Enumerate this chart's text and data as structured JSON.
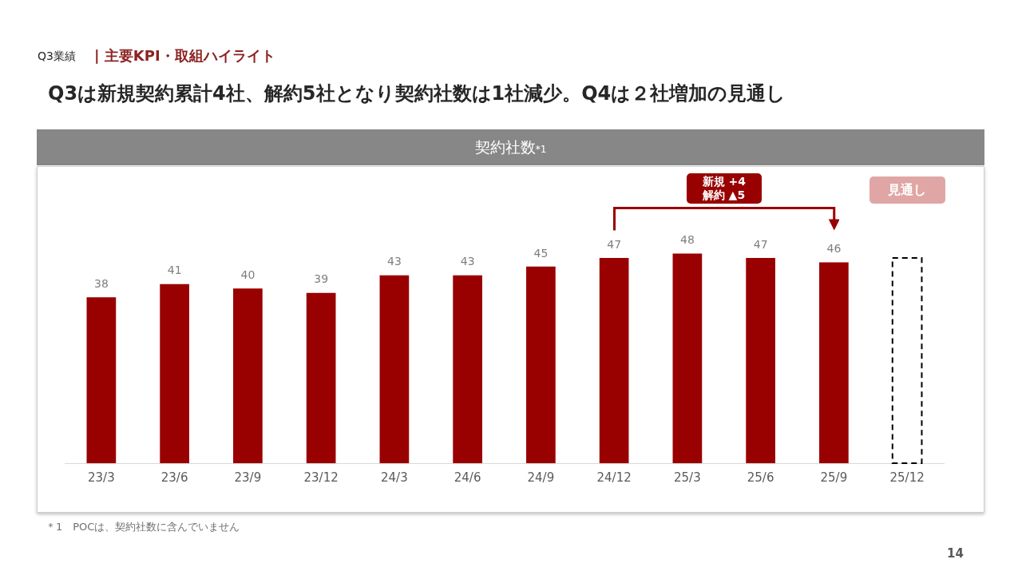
{
  "chart_data": {
    "type": "bar",
    "title": "Q3は新規契約累計4社、解約5社となり契約社数は1社減少。Q4は２社増加の見通し",
    "subtitle": "契約社数$_{*1}$",
    "categories": [
      "23/3",
      "23/6",
      "23/9",
      "23/12",
      "24/3",
      "24/6",
      "24/9",
      "24/12",
      "25/3",
      "25/6",
      "25/9",
      "25/12"
    ],
    "series": [
      {
        "color": "#990000",
        "values": [
          38,
          41,
          40,
          39,
          43,
          43,
          45,
          47,
          48,
          47,
          46,
          null
        ],
        "value_labels": [
          "38",
          "41",
          "40",
          "39",
          "43",
          "43",
          "45",
          "47",
          "48",
          "47",
          "46",
          null
        ]
      },
      {
        "name": "見通し",
        "color": "#000000",
        "line_style": "dashed",
        "values": [
          null,
          null,
          null,
          null,
          null,
          null,
          null,
          null,
          null,
          null,
          null,
          47
        ]
      }
    ],
    "tick_labels": "x",
    "annotations": [
      "Q3業績",
      "| 主要KPI・取組ハイライト",
      "新規 +4\n解約 ▲5",
      "＊1　POCは、契約社数に含んでいません",
      "14"
    ]
  }
}
